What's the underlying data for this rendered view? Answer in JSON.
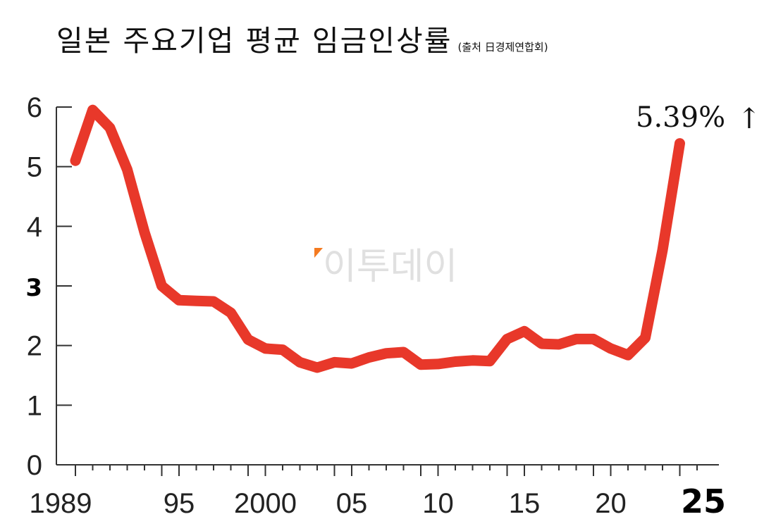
{
  "title": "일본 주요기업 평균 임금인상률",
  "source_note": "(출처 日경제연합회)",
  "watermark": "이투데이",
  "annotation": "5.39%",
  "annotation_arrow": "↑",
  "colors": {
    "line": "#e8382a",
    "axis": "#333333",
    "watermark_accent": "#f47a20"
  },
  "chart_data": {
    "type": "line",
    "title": "일본 주요기업 평균 임금인상률",
    "xlabel": "",
    "ylabel": "",
    "ylim": [
      0,
      6
    ],
    "xlim": [
      1989,
      2025
    ],
    "grid": false,
    "y_ticks": [
      "0",
      "1",
      "2",
      "3",
      "4",
      "5",
      "6"
    ],
    "x_ticks": [
      {
        "x": 1989,
        "label": "1989"
      },
      {
        "x": 1995,
        "label": "95"
      },
      {
        "x": 2000,
        "label": "2000"
      },
      {
        "x": 2005,
        "label": "05"
      },
      {
        "x": 2010,
        "label": "10"
      },
      {
        "x": 2015,
        "label": "15"
      },
      {
        "x": 2020,
        "label": "20"
      },
      {
        "x": 2025,
        "label": "25"
      }
    ],
    "series": [
      {
        "x": [
          1989,
          1990,
          1991,
          1992,
          1993,
          1994,
          1995,
          1996,
          1997,
          1998,
          1999,
          2000,
          2001,
          2002,
          2003,
          2004,
          2005,
          2006,
          2007,
          2008,
          2009,
          2010,
          2011,
          2012,
          2013,
          2014,
          2015,
          2016,
          2017,
          2018,
          2019,
          2020,
          2021,
          2022,
          2023,
          2024
        ],
        "values": [
          5.1,
          5.95,
          5.65,
          4.95,
          3.9,
          3.0,
          2.76,
          2.75,
          2.74,
          2.55,
          2.1,
          1.95,
          1.93,
          1.72,
          1.63,
          1.72,
          1.7,
          1.8,
          1.87,
          1.89,
          1.68,
          1.69,
          1.73,
          1.75,
          1.74,
          2.11,
          2.24,
          2.03,
          2.02,
          2.11,
          2.11,
          1.95,
          1.84,
          2.13,
          3.6,
          5.39
        ]
      }
    ]
  }
}
